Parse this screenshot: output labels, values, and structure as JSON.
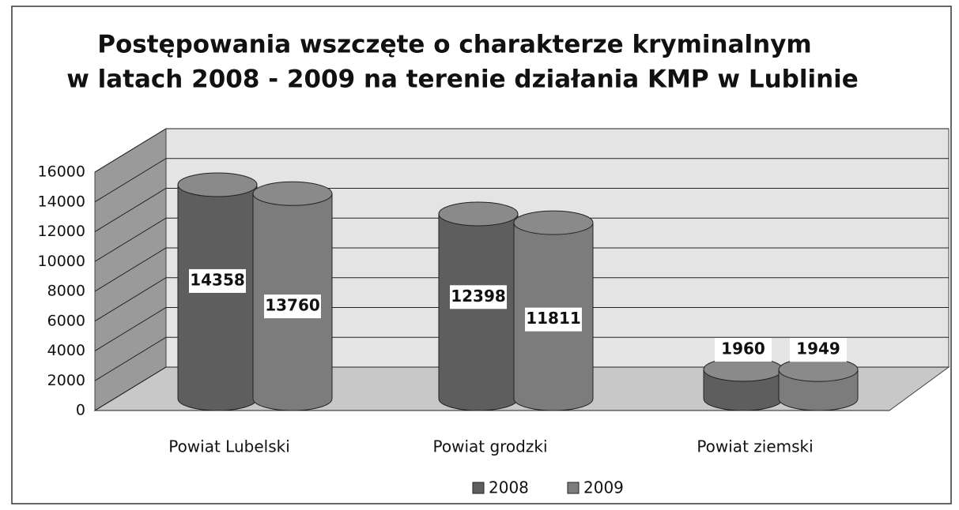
{
  "chart_data": {
    "type": "bar3d",
    "title": [
      "Postępowania wszczęte o charakterze kryminalnym",
      "w latach 2008 - 2009 na terenie działania KMP w Lublinie"
    ],
    "categories": [
      "Powiat Lubelski",
      "Powiat grodzki",
      "Powiat ziemski"
    ],
    "series": [
      {
        "name": "2008",
        "color": "#5e5e5e",
        "values": [
          14358,
          12398,
          1960
        ]
      },
      {
        "name": "2009",
        "color": "#7c7c7c",
        "values": [
          13760,
          11811,
          1949
        ]
      }
    ],
    "ylim": [
      0,
      16000
    ],
    "yticks": [
      0,
      2000,
      4000,
      6000,
      8000,
      10000,
      12000,
      14000,
      16000
    ],
    "grid": true,
    "legend": "bottom"
  }
}
